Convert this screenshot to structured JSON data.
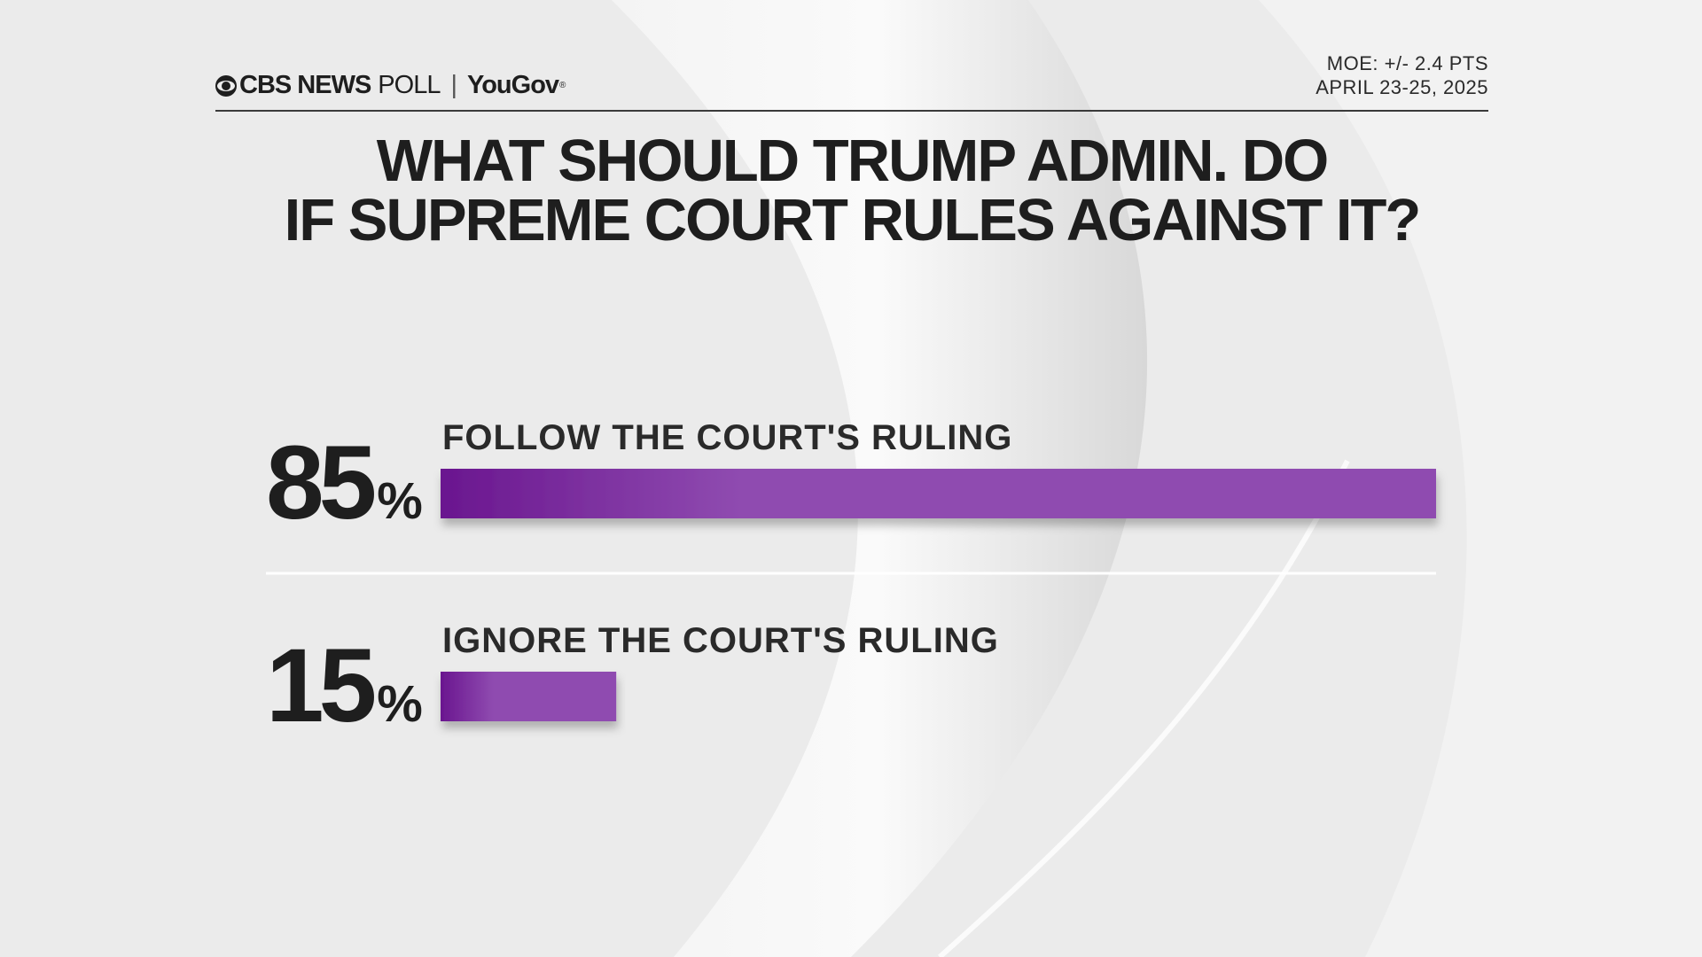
{
  "header": {
    "brand_cbs": "CBS NEWS",
    "brand_poll": "POLL",
    "brand_separator": "|",
    "brand_partner": "YouGov",
    "brand_partner_mark": "®",
    "moe": "MOE: +/- 2.4 PTS",
    "dates": "APRIL 23-25, 2025"
  },
  "colors": {
    "bar_start": "#6a168f",
    "bar_end": "#8f4bb0",
    "text": "#1e1e1e"
  },
  "chart_data": {
    "type": "bar",
    "orientation": "horizontal",
    "title": "WHAT SHOULD TRUMP ADMIN. DO IF SUPREME COURT RULES AGAINST IT?",
    "categories": [
      "FOLLOW THE COURT'S RULING",
      "IGNORE THE COURT'S RULING"
    ],
    "values": [
      85,
      15
    ],
    "value_suffix": "%",
    "xlim": [
      0,
      85
    ],
    "grid": false,
    "legend": "none"
  }
}
